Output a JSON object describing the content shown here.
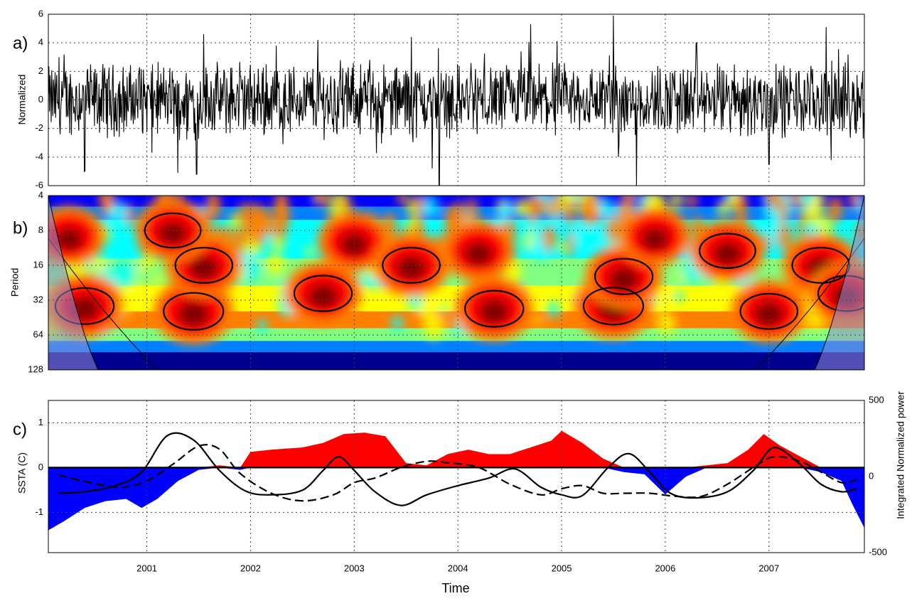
{
  "chart_data": [
    {
      "panel": "a)",
      "type": "line",
      "ylabel": "Normalized",
      "ylim": [
        -6,
        6
      ],
      "yticks": [
        "6",
        "4",
        "2",
        "0",
        "-2",
        "-4",
        "-6"
      ],
      "xlim": [
        2000.05,
        2007.92
      ],
      "xticks": [
        2001,
        2002,
        2003,
        2004,
        2005,
        2006,
        2007
      ],
      "series": [
        {
          "values_note_free": true,
          "color": "#000000",
          "spikes": [
            {
              "x": 2000.4,
              "y": -5.0
            },
            {
              "x": 2001.05,
              "y": -3.7
            },
            {
              "x": 2001.3,
              "y": -5.1
            },
            {
              "x": 2001.55,
              "y": 4.6
            },
            {
              "x": 2001.48,
              "y": -5.2
            },
            {
              "x": 2002.25,
              "y": 3.8
            },
            {
              "x": 2002.65,
              "y": 4.2
            },
            {
              "x": 2003.75,
              "y": -4.8
            },
            {
              "x": 2003.82,
              "y": -6.0
            },
            {
              "x": 2003.55,
              "y": 4.4
            },
            {
              "x": 2004.7,
              "y": 5.3
            },
            {
              "x": 2005.5,
              "y": 5.9
            },
            {
              "x": 2005.55,
              "y": -4.0
            },
            {
              "x": 2005.72,
              "y": -6.0
            },
            {
              "x": 2006.3,
              "y": 4.0
            },
            {
              "x": 2007.0,
              "y": -4.5
            },
            {
              "x": 2007.55,
              "y": 5.1
            },
            {
              "x": 2007.6,
              "y": -4.2
            }
          ]
        }
      ]
    },
    {
      "panel": "b)",
      "type": "heatmap",
      "ylabel": "Period",
      "yscale": "log2",
      "ylim": [
        4,
        128
      ],
      "yticks": [
        "4",
        "8",
        "16",
        "32",
        "64",
        "128"
      ],
      "xlim": [
        2000.05,
        2007.92
      ],
      "colormap": [
        "#00008f",
        "#0000ff",
        "#0080ff",
        "#00ffff",
        "#80ff80",
        "#ffff00",
        "#ff8000",
        "#ff0000",
        "#800000"
      ],
      "coi_color": "#8f8fd6",
      "high_power_regions": [
        {
          "x": 2000.4,
          "period": 36,
          "power": 0.95
        },
        {
          "x": 2000.25,
          "period": 9,
          "power": 0.8
        },
        {
          "x": 2001.45,
          "period": 40,
          "power": 1.0
        },
        {
          "x": 2001.55,
          "period": 16,
          "power": 0.9
        },
        {
          "x": 2001.25,
          "period": 8,
          "power": 0.85
        },
        {
          "x": 2002.7,
          "period": 28,
          "power": 0.92
        },
        {
          "x": 2003.0,
          "period": 10,
          "power": 0.8
        },
        {
          "x": 2003.55,
          "period": 16,
          "power": 0.9
        },
        {
          "x": 2004.35,
          "period": 38,
          "power": 0.95
        },
        {
          "x": 2004.2,
          "period": 12,
          "power": 0.82
        },
        {
          "x": 2005.5,
          "period": 36,
          "power": 1.0
        },
        {
          "x": 2005.6,
          "period": 20,
          "power": 0.92
        },
        {
          "x": 2005.9,
          "period": 9,
          "power": 0.78
        },
        {
          "x": 2006.6,
          "period": 12,
          "power": 0.85
        },
        {
          "x": 2007.0,
          "period": 40,
          "power": 0.9
        },
        {
          "x": 2007.5,
          "period": 16,
          "power": 0.9
        },
        {
          "x": 2007.75,
          "period": 28,
          "power": 0.9
        }
      ]
    },
    {
      "panel": "c)",
      "type": "area",
      "ylabel": "SSTA (C)",
      "y2label": "Integrated Normalized power",
      "xlabel": "Time",
      "ylim": [
        -1.9,
        1.5
      ],
      "yticks": [
        "1",
        "0",
        "-1"
      ],
      "y2lim": [
        -500,
        500
      ],
      "y2ticks": [
        "500",
        "0",
        "-500"
      ],
      "xlim": [
        2000.05,
        2007.92
      ],
      "xticks": [
        "2001",
        "2002",
        "2003",
        "2004",
        "2005",
        "2006",
        "2007"
      ],
      "ssta": {
        "x": [
          2000.05,
          2000.2,
          2000.4,
          2000.6,
          2000.8,
          2000.95,
          2001.1,
          2001.3,
          2001.5,
          2001.7,
          2001.9,
          2002.0,
          2002.2,
          2002.5,
          2002.7,
          2002.9,
          2003.1,
          2003.3,
          2003.5,
          2003.7,
          2003.9,
          2004.1,
          2004.3,
          2004.5,
          2004.7,
          2004.9,
          2005.0,
          2005.2,
          2005.4,
          2005.6,
          2005.8,
          2006.0,
          2006.2,
          2006.4,
          2006.6,
          2006.8,
          2006.95,
          2007.1,
          2007.3,
          2007.5,
          2007.7,
          2007.8,
          2007.92
        ],
        "y": [
          -1.4,
          -1.2,
          -0.9,
          -0.75,
          -0.7,
          -0.9,
          -0.7,
          -0.3,
          -0.05,
          0.05,
          -0.05,
          0.35,
          0.4,
          0.45,
          0.55,
          0.75,
          0.78,
          0.7,
          0.1,
          0.05,
          0.3,
          0.4,
          0.3,
          0.3,
          0.45,
          0.6,
          0.82,
          0.55,
          0.2,
          -0.1,
          -0.15,
          -0.6,
          -0.2,
          0.05,
          0.1,
          0.4,
          0.75,
          0.5,
          0.25,
          -0.1,
          -0.3,
          -0.8,
          -1.35
        ]
      },
      "series": [
        {
          "style": "solid",
          "color": "#000000",
          "x": [
            2000.15,
            2000.4,
            2000.7,
            2000.95,
            2001.2,
            2001.45,
            2001.7,
            2001.95,
            2002.2,
            2002.5,
            2002.7,
            2002.85,
            2003.0,
            2003.2,
            2003.45,
            2003.7,
            2004.0,
            2004.3,
            2004.55,
            2004.8,
            2005.0,
            2005.2,
            2005.45,
            2005.65,
            2005.85,
            2006.05,
            2006.3,
            2006.6,
            2006.85,
            2007.05,
            2007.3,
            2007.5,
            2007.7,
            2007.85
          ],
          "y": [
            -110,
            -100,
            -60,
            30,
            270,
            240,
            40,
            -95,
            -120,
            -90,
            40,
            130,
            40,
            -100,
            -190,
            -120,
            -60,
            -10,
            50,
            -70,
            -120,
            -125,
            60,
            150,
            30,
            -110,
            -140,
            -100,
            40,
            190,
            80,
            -50,
            -100,
            -80
          ]
        },
        {
          "style": "dashed",
          "color": "#000000",
          "x": [
            2000.15,
            2000.45,
            2000.75,
            2001.0,
            2001.25,
            2001.5,
            2001.7,
            2001.9,
            2002.2,
            2002.5,
            2002.8,
            2003.0,
            2003.2,
            2003.45,
            2003.7,
            2003.9,
            2004.2,
            2004.5,
            2004.8,
            2005.0,
            2005.2,
            2005.4,
            2005.6,
            2005.85,
            2006.1,
            2006.35,
            2006.6,
            2006.85,
            2007.05,
            2007.3,
            2007.5,
            2007.7,
            2007.85
          ],
          "y": [
            10,
            -40,
            -70,
            -30,
            80,
            200,
            180,
            20,
            -110,
            -160,
            -120,
            -40,
            -10,
            60,
            100,
            90,
            60,
            -50,
            -120,
            -80,
            -60,
            -110,
            -110,
            -110,
            -130,
            -130,
            -50,
            60,
            130,
            100,
            30,
            -40,
            -20
          ]
        }
      ]
    }
  ]
}
